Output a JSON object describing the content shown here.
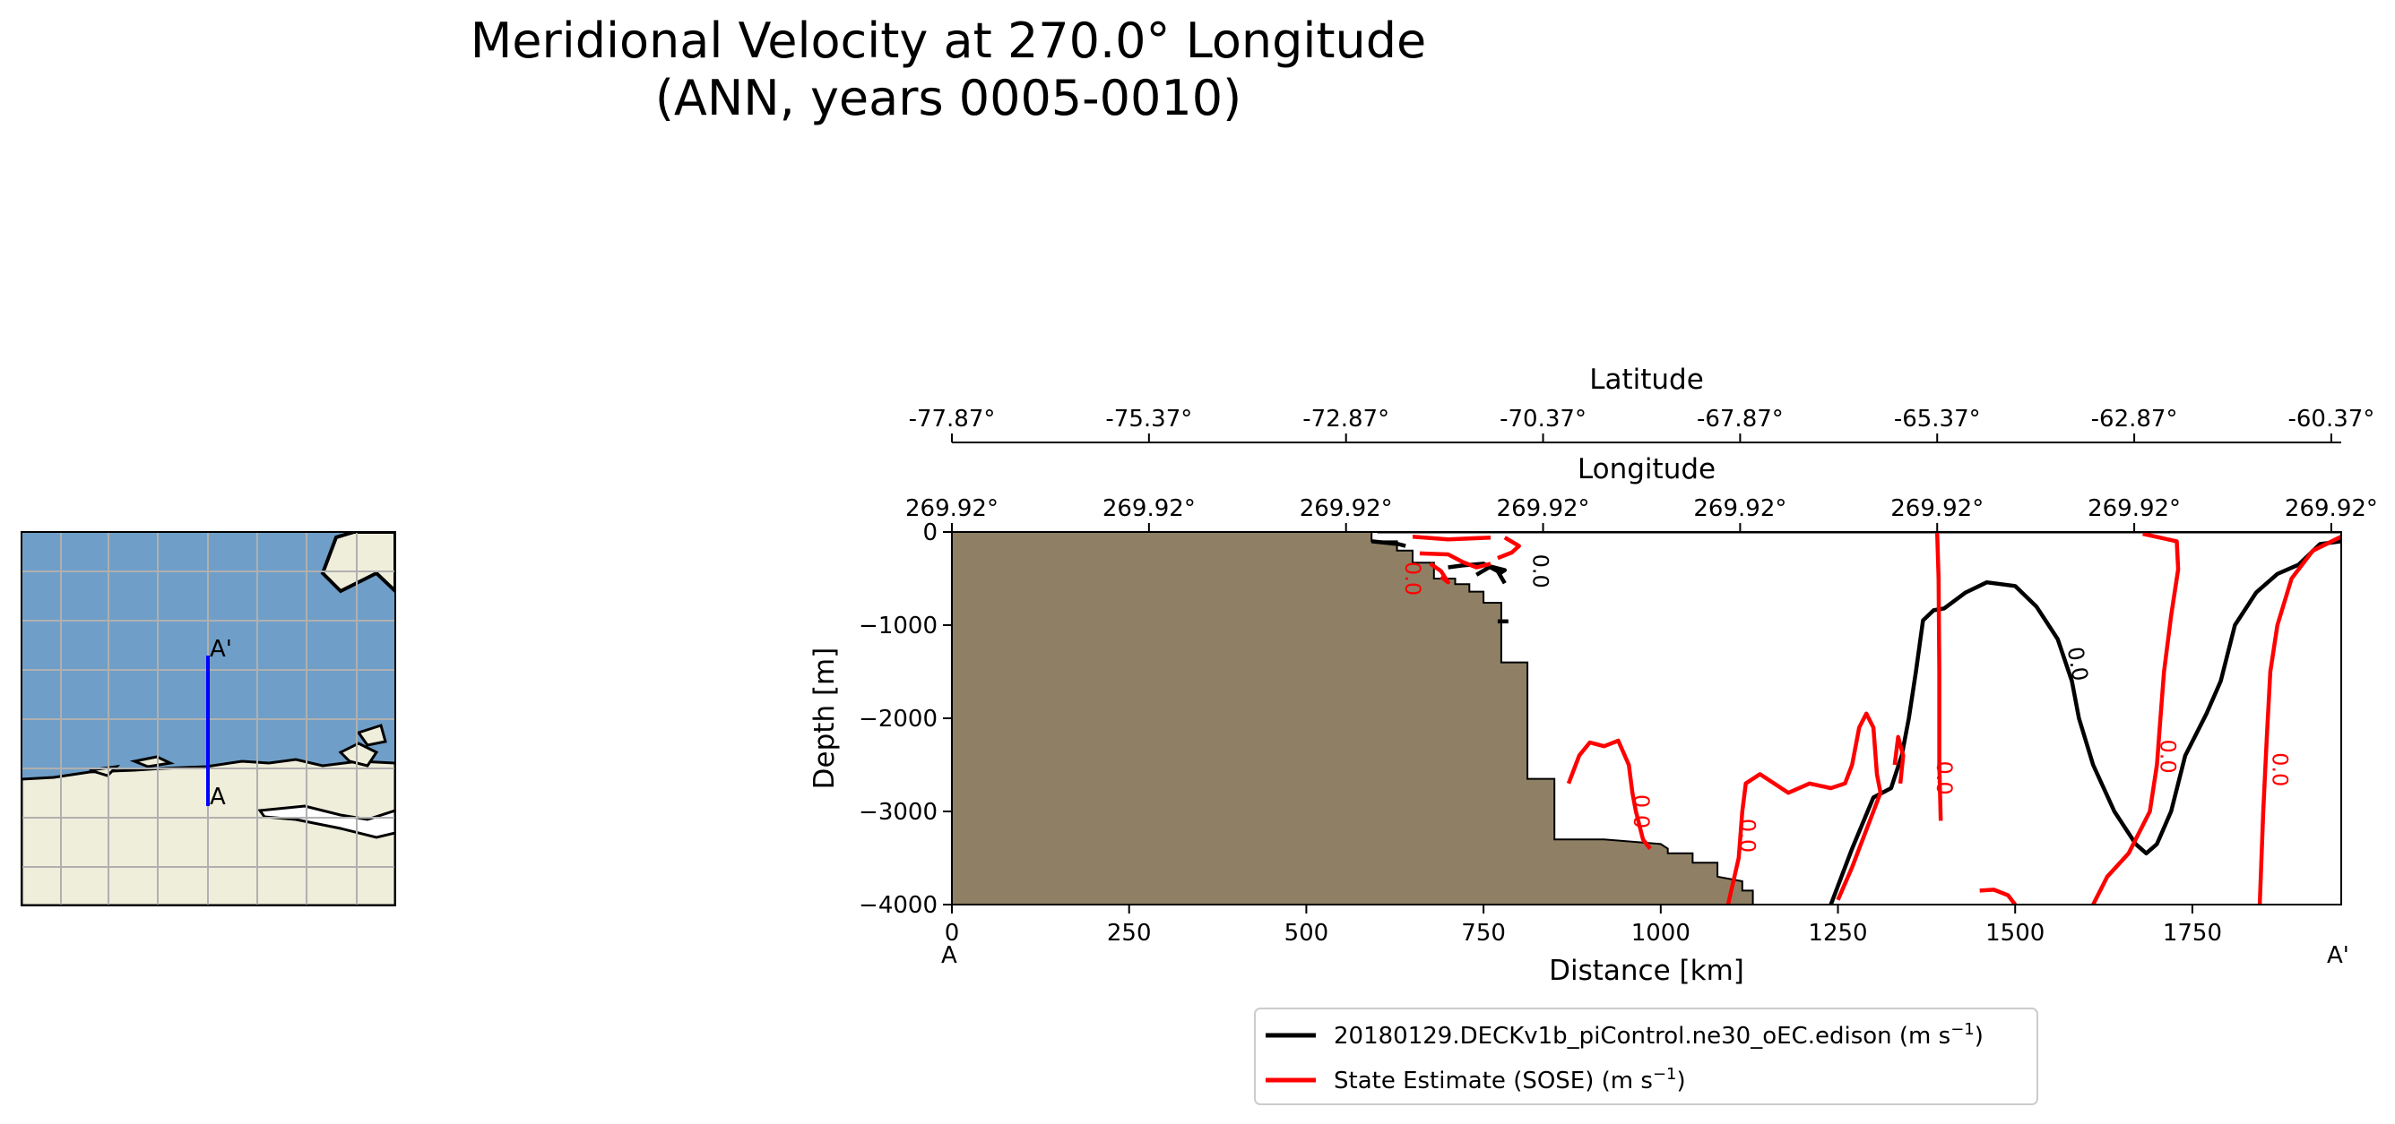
{
  "title_line1": "Meridional Velocity at 270.0° Longitude",
  "title_line2": "(ANN, years 0005-0010)",
  "colors": {
    "black_line": "#000000",
    "red_line": "#ff0000",
    "bathymetry": "#8f8065",
    "ocean": "#6f9fc8",
    "land": "#efeedb",
    "transect": "#0000ff"
  },
  "inset_map": {
    "start_label": "A",
    "end_label": "A'"
  },
  "chart_data": {
    "type": "line",
    "xlabel": "Distance [km]",
    "ylabel": "Depth [m]",
    "xlim": [
      0,
      1960
    ],
    "ylim": [
      -4000,
      0
    ],
    "x_ticks": [
      0,
      250,
      500,
      750,
      1000,
      1250,
      1500,
      1750
    ],
    "x_tick_labels": [
      "0",
      "250",
      "500",
      "750",
      "1000",
      "1250",
      "1500",
      "1750"
    ],
    "y_ticks": [
      0,
      -1000,
      -2000,
      -3000,
      -4000
    ],
    "y_tick_labels": [
      "0",
      "−1000",
      "−2000",
      "−3000",
      "−4000"
    ],
    "start_label": "A",
    "end_label": "A'",
    "top_axis_lat": {
      "label": "Latitude",
      "ticks": [
        0,
        278,
        556,
        834,
        1112,
        1390,
        1668,
        1946
      ],
      "tick_labels": [
        "-77.87°",
        "-75.37°",
        "-72.87°",
        "-70.37°",
        "-67.87°",
        "-65.37°",
        "-62.87°",
        "-60.37°"
      ]
    },
    "top_axis_lon": {
      "label": "Longitude",
      "ticks": [
        0,
        278,
        556,
        834,
        1112,
        1390,
        1668,
        1946
      ],
      "tick_labels": [
        "269.92°",
        "269.92°",
        "269.92°",
        "269.92°",
        "269.92°",
        "269.92°",
        "269.92°",
        "269.92°"
      ]
    },
    "legend": [
      {
        "name": "model",
        "text": "20180129.DECKv1b_piControl.ne30_oEC.edison (m s",
        "sup": "−1",
        "close": ")"
      },
      {
        "name": "obs",
        "text": "State Estimate (SOSE) (m s",
        "sup": "−1",
        "close": ")"
      }
    ],
    "contour_label": "0.0",
    "bathymetry": [
      [
        0,
        0
      ],
      [
        592,
        0
      ],
      [
        592,
        -100
      ],
      [
        628,
        -100
      ],
      [
        628,
        -200
      ],
      [
        650,
        -200
      ],
      [
        650,
        -330
      ],
      [
        680,
        -330
      ],
      [
        680,
        -500
      ],
      [
        710,
        -500
      ],
      [
        710,
        -560
      ],
      [
        730,
        -560
      ],
      [
        730,
        -640
      ],
      [
        750,
        -640
      ],
      [
        750,
        -760
      ],
      [
        775,
        -760
      ],
      [
        775,
        -1400
      ],
      [
        812,
        -1400
      ],
      [
        812,
        -2650
      ],
      [
        850,
        -2650
      ],
      [
        850,
        -3300
      ],
      [
        920,
        -3300
      ],
      [
        1000,
        -3350
      ],
      [
        1010,
        -3400
      ],
      [
        1010,
        -3450
      ],
      [
        1045,
        -3450
      ],
      [
        1045,
        -3550
      ],
      [
        1080,
        -3550
      ],
      [
        1080,
        -3700
      ],
      [
        1115,
        -3750
      ],
      [
        1115,
        -3850
      ],
      [
        1130,
        -3850
      ],
      [
        1130,
        -4000
      ],
      [
        0,
        -4000
      ]
    ],
    "series": [
      {
        "name": "model",
        "color": "#000000",
        "segments": [
          [
            [
              1240,
              -4000
            ],
            [
              1270,
              -3400
            ],
            [
              1300,
              -2850
            ],
            [
              1325,
              -2750
            ],
            [
              1340,
              -2400
            ],
            [
              1350,
              -2000
            ],
            [
              1360,
              -1500
            ],
            [
              1370,
              -950
            ],
            [
              1385,
              -840
            ],
            [
              1400,
              -820
            ],
            [
              1430,
              -650
            ],
            [
              1460,
              -540
            ],
            [
              1500,
              -580
            ],
            [
              1530,
              -800
            ],
            [
              1560,
              -1150
            ],
            [
              1580,
              -1600
            ],
            [
              1590,
              -2000
            ],
            [
              1610,
              -2500
            ],
            [
              1640,
              -3000
            ],
            [
              1670,
              -3350
            ],
            [
              1685,
              -3450
            ],
            [
              1700,
              -3350
            ],
            [
              1720,
              -3000
            ],
            [
              1740,
              -2400
            ],
            [
              1770,
              -1950
            ],
            [
              1790,
              -1600
            ],
            [
              1810,
              -1000
            ],
            [
              1840,
              -650
            ],
            [
              1870,
              -450
            ],
            [
              1900,
              -350
            ],
            [
              1930,
              -130
            ],
            [
              1960,
              -100
            ]
          ],
          [
            [
              592,
              -100
            ],
            [
              630,
              -130
            ],
            [
              640,
              -150
            ]
          ],
          [
            [
              700,
              -380
            ],
            [
              720,
              -360
            ],
            [
              750,
              -340
            ],
            [
              770,
              -420
            ],
            [
              780,
              -550
            ]
          ],
          [
            [
              740,
              -460
            ],
            [
              760,
              -370
            ],
            [
              780,
              -410
            ],
            [
              770,
              -460
            ]
          ],
          [
            [
              770,
              -960
            ],
            [
              785,
              -960
            ]
          ],
          [
            [
              600,
              0
            ],
            [
              1960,
              0
            ]
          ]
        ]
      },
      {
        "name": "obs",
        "color": "#ff0000",
        "segments": [
          [
            [
              650,
              -50
            ],
            [
              700,
              -80
            ],
            [
              760,
              -60
            ]
          ],
          [
            [
              660,
              -230
            ],
            [
              700,
              -240
            ],
            [
              720,
              -320
            ],
            [
              740,
              -380
            ],
            [
              760,
              -340
            ]
          ],
          [
            [
              675,
              -340
            ],
            [
              690,
              -420
            ],
            [
              700,
              -540
            ],
            [
              690,
              -480
            ]
          ],
          [
            [
              780,
              -60
            ],
            [
              800,
              -150
            ],
            [
              790,
              -220
            ],
            [
              770,
              -280
            ]
          ],
          [
            [
              870,
              -2700
            ],
            [
              885,
              -2400
            ],
            [
              900,
              -2260
            ],
            [
              920,
              -2300
            ],
            [
              940,
              -2240
            ],
            [
              955,
              -2500
            ],
            [
              960,
              -2800
            ],
            [
              965,
              -3000
            ],
            [
              975,
              -3300
            ],
            [
              985,
              -3400
            ]
          ],
          [
            [
              1095,
              -4000
            ],
            [
              1110,
              -3500
            ],
            [
              1115,
              -3000
            ],
            [
              1120,
              -2700
            ],
            [
              1140,
              -2600
            ],
            [
              1160,
              -2700
            ],
            [
              1180,
              -2800
            ],
            [
              1210,
              -2700
            ],
            [
              1240,
              -2750
            ],
            [
              1260,
              -2700
            ],
            [
              1270,
              -2500
            ],
            [
              1280,
              -2100
            ],
            [
              1290,
              -1950
            ],
            [
              1300,
              -2100
            ],
            [
              1305,
              -2600
            ],
            [
              1310,
              -2800
            ],
            [
              1300,
              -3000
            ],
            [
              1280,
              -3400
            ],
            [
              1270,
              -3600
            ],
            [
              1250,
              -3950
            ]
          ],
          [
            [
              1330,
              -2500
            ],
            [
              1335,
              -2200
            ],
            [
              1342,
              -2400
            ],
            [
              1338,
              -2700
            ]
          ],
          [
            [
              1390,
              0
            ],
            [
              1392,
              -500
            ],
            [
              1393,
              -1500
            ],
            [
              1393,
              -2500
            ],
            [
              1395,
              -3100
            ]
          ],
          [
            [
              1450,
              -3850
            ],
            [
              1470,
              -3840
            ],
            [
              1490,
              -3900
            ],
            [
              1500,
              -4000
            ]
          ],
          [
            [
              1610,
              -4000
            ],
            [
              1630,
              -3700
            ],
            [
              1660,
              -3450
            ],
            [
              1690,
              -3000
            ],
            [
              1700,
              -2500
            ],
            [
              1705,
              -2000
            ],
            [
              1710,
              -1500
            ],
            [
              1720,
              -900
            ],
            [
              1730,
              -400
            ],
            [
              1728,
              -100
            ],
            [
              1680,
              -20
            ]
          ],
          [
            [
              1845,
              -4000
            ],
            [
              1850,
              -3000
            ],
            [
              1855,
              -2200
            ],
            [
              1860,
              -1500
            ],
            [
              1870,
              -1000
            ],
            [
              1890,
              -500
            ],
            [
              1920,
              -200
            ],
            [
              1960,
              -50
            ]
          ]
        ]
      }
    ]
  }
}
